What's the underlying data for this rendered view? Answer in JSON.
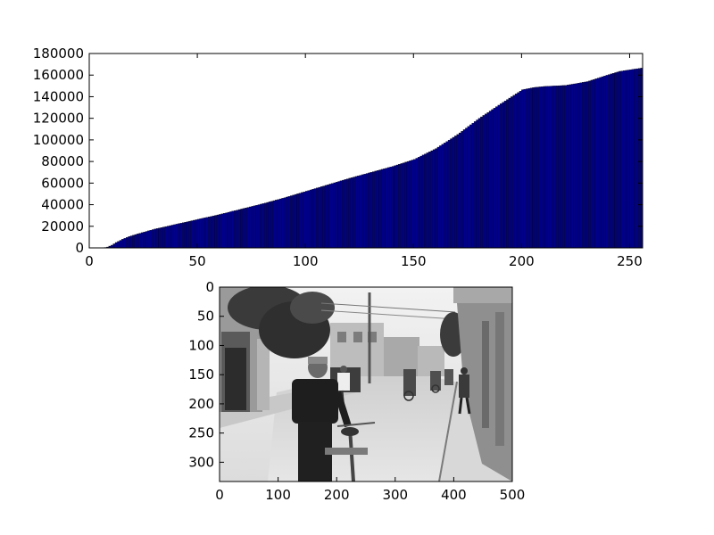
{
  "chart_data": [
    {
      "type": "bar",
      "title": "",
      "xlabel": "",
      "ylabel": "",
      "xlim": [
        0,
        256
      ],
      "ylim": [
        0,
        180000
      ],
      "x_ticks": [
        0,
        50,
        100,
        150,
        200,
        250
      ],
      "y_ticks": [
        0,
        20000,
        40000,
        60000,
        80000,
        100000,
        120000,
        140000,
        160000,
        180000
      ],
      "grid": false,
      "bar_color": "#00008b",
      "bar_edge_color": "#000000",
      "anchor_points": [
        [
          0,
          0
        ],
        [
          6,
          0
        ],
        [
          8,
          800
        ],
        [
          10,
          2500
        ],
        [
          12,
          5000
        ],
        [
          15,
          8000
        ],
        [
          18,
          10500
        ],
        [
          22,
          13000
        ],
        [
          30,
          17500
        ],
        [
          40,
          22000
        ],
        [
          50,
          26500
        ],
        [
          60,
          31000
        ],
        [
          70,
          36000
        ],
        [
          80,
          41000
        ],
        [
          90,
          46500
        ],
        [
          100,
          52500
        ],
        [
          110,
          58500
        ],
        [
          120,
          64500
        ],
        [
          130,
          70000
        ],
        [
          140,
          75500
        ],
        [
          150,
          82000
        ],
        [
          160,
          92000
        ],
        [
          170,
          105000
        ],
        [
          180,
          120000
        ],
        [
          190,
          133500
        ],
        [
          195,
          140000
        ],
        [
          200,
          146500
        ],
        [
          205,
          148500
        ],
        [
          210,
          149500
        ],
        [
          220,
          150500
        ],
        [
          230,
          154000
        ],
        [
          240,
          160500
        ],
        [
          245,
          163500
        ],
        [
          250,
          165000
        ],
        [
          255,
          166500
        ]
      ],
      "n_bins": 256
    },
    {
      "type": "image",
      "description_tag": "grayscale street photo",
      "xlim": [
        0,
        500
      ],
      "ylim": [
        333,
        0
      ],
      "x_ticks": [
        0,
        100,
        200,
        300,
        400,
        500
      ],
      "y_ticks": [
        0,
        50,
        100,
        150,
        200,
        250,
        300
      ]
    }
  ]
}
